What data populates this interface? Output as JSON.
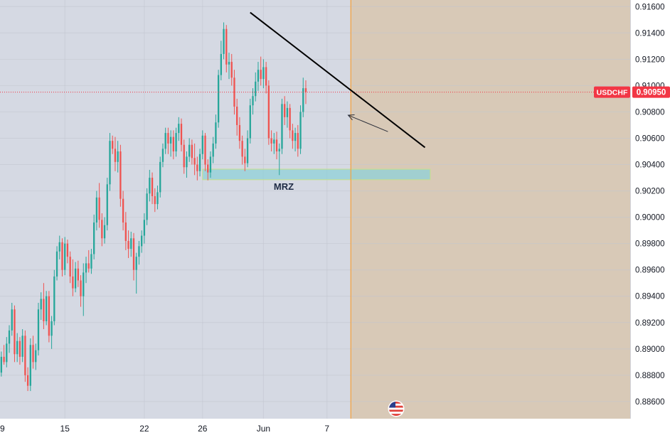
{
  "symbol": "USDCHF",
  "last_price": "0.90950",
  "zone_label": "MRZ",
  "colors": {
    "up": "#26a69a",
    "down": "#ef5350",
    "plot_bg": "#d5d9e3",
    "future_bg": "#d8c9b7",
    "divider": "#f5a13b",
    "price_line": "#f23645",
    "zone": "#8fd0d8",
    "trendline": "#000000",
    "axis_text": "#131722"
  },
  "icons": {
    "event": "us-flag-icon"
  },
  "chart_data": {
    "type": "candlestick",
    "y_ticks": [
      "0.91600",
      "0.91400",
      "0.91200",
      "0.91000",
      "0.90800",
      "0.90600",
      "0.90400",
      "0.90200",
      "0.90000",
      "0.89800",
      "0.89600",
      "0.89400",
      "0.89200",
      "0.89000",
      "0.88800",
      "0.88600"
    ],
    "x_ticks": [
      {
        "label": "9",
        "bar": -2
      },
      {
        "label": "15",
        "bar": 24
      },
      {
        "label": "22",
        "bar": 54
      },
      {
        "label": "26",
        "bar": 76
      },
      {
        "label": "Jun",
        "bar": 99
      },
      {
        "label": "7",
        "bar": 123
      }
    ],
    "ylim": [
      0.8847,
      0.9165
    ],
    "bars_visible": 238,
    "candles": [
      [
        0.8882,
        0.8898,
        0.8879,
        0.8894
      ],
      [
        0.8894,
        0.8903,
        0.8888,
        0.889
      ],
      [
        0.889,
        0.8909,
        0.8886,
        0.8904
      ],
      [
        0.8904,
        0.8918,
        0.8897,
        0.8914
      ],
      [
        0.8914,
        0.8935,
        0.891,
        0.893
      ],
      [
        0.893,
        0.8933,
        0.889,
        0.8896
      ],
      [
        0.8896,
        0.8912,
        0.889,
        0.8906
      ],
      [
        0.8906,
        0.8909,
        0.8888,
        0.8894
      ],
      [
        0.8894,
        0.8915,
        0.889,
        0.891
      ],
      [
        0.891,
        0.8914,
        0.8875,
        0.888
      ],
      [
        0.888,
        0.8886,
        0.8868,
        0.8872
      ],
      [
        0.8872,
        0.8908,
        0.8868,
        0.8903
      ],
      [
        0.8903,
        0.891,
        0.8885,
        0.889
      ],
      [
        0.889,
        0.8904,
        0.8884,
        0.8899
      ],
      [
        0.8899,
        0.8935,
        0.8895,
        0.893
      ],
      [
        0.893,
        0.8943,
        0.8922,
        0.8938
      ],
      [
        0.8938,
        0.895,
        0.8915,
        0.8921
      ],
      [
        0.8921,
        0.8944,
        0.8918,
        0.894
      ],
      [
        0.894,
        0.8944,
        0.8905,
        0.891
      ],
      [
        0.891,
        0.8925,
        0.89,
        0.8921
      ],
      [
        0.8921,
        0.896,
        0.8918,
        0.8955
      ],
      [
        0.8955,
        0.8978,
        0.8952,
        0.8974
      ],
      [
        0.8974,
        0.8986,
        0.8968,
        0.8981
      ],
      [
        0.8981,
        0.8984,
        0.8955,
        0.896
      ],
      [
        0.896,
        0.8985,
        0.8956,
        0.898
      ],
      [
        0.898,
        0.8983,
        0.8965,
        0.897
      ],
      [
        0.897,
        0.8974,
        0.895,
        0.8955
      ],
      [
        0.8955,
        0.8968,
        0.894,
        0.8946
      ],
      [
        0.8946,
        0.8966,
        0.8943,
        0.8961
      ],
      [
        0.8961,
        0.8967,
        0.8947,
        0.8952
      ],
      [
        0.8952,
        0.8956,
        0.8932,
        0.894
      ],
      [
        0.894,
        0.8965,
        0.8925,
        0.8958
      ],
      [
        0.8958,
        0.897,
        0.895,
        0.8965
      ],
      [
        0.8965,
        0.8975,
        0.8958,
        0.8961
      ],
      [
        0.8961,
        0.8976,
        0.8957,
        0.8972
      ],
      [
        0.8972,
        0.9002,
        0.8968,
        0.8996
      ],
      [
        0.8996,
        0.902,
        0.899,
        0.9015
      ],
      [
        0.9015,
        0.9026,
        0.8992,
        0.8998
      ],
      [
        0.8998,
        0.9003,
        0.8978,
        0.8984
      ],
      [
        0.8984,
        0.9,
        0.898,
        0.8994
      ],
      [
        0.8994,
        0.903,
        0.899,
        0.9025
      ],
      [
        0.9025,
        0.9064,
        0.902,
        0.9058
      ],
      [
        0.9058,
        0.9062,
        0.9048,
        0.9052
      ],
      [
        0.9052,
        0.9061,
        0.9035,
        0.9042
      ],
      [
        0.9042,
        0.9058,
        0.9034,
        0.905
      ],
      [
        0.905,
        0.9055,
        0.9008,
        0.9014
      ],
      [
        0.9014,
        0.902,
        0.899,
        0.8996
      ],
      [
        0.8996,
        0.9004,
        0.8975,
        0.8982
      ],
      [
        0.8982,
        0.899,
        0.8969,
        0.8976
      ],
      [
        0.8976,
        0.8989,
        0.897,
        0.8984
      ],
      [
        0.8984,
        0.8988,
        0.8952,
        0.896
      ],
      [
        0.896,
        0.8973,
        0.8942,
        0.897
      ],
      [
        0.897,
        0.8982,
        0.8964,
        0.8978
      ],
      [
        0.8978,
        0.899,
        0.8973,
        0.8986
      ],
      [
        0.8986,
        0.9003,
        0.898,
        0.8998
      ],
      [
        0.8998,
        0.9022,
        0.8994,
        0.9018
      ],
      [
        0.9018,
        0.9036,
        0.9012,
        0.903
      ],
      [
        0.903,
        0.9034,
        0.901,
        0.9016
      ],
      [
        0.9016,
        0.9022,
        0.9004,
        0.901
      ],
      [
        0.901,
        0.9024,
        0.9006,
        0.9019
      ],
      [
        0.9019,
        0.9046,
        0.9015,
        0.9042
      ],
      [
        0.9042,
        0.9056,
        0.9038,
        0.9052
      ],
      [
        0.9052,
        0.9068,
        0.9048,
        0.9064
      ],
      [
        0.9064,
        0.9068,
        0.9048,
        0.9056
      ],
      [
        0.9056,
        0.9066,
        0.9046,
        0.9061
      ],
      [
        0.9061,
        0.9066,
        0.9044,
        0.905
      ],
      [
        0.905,
        0.9068,
        0.9046,
        0.9064
      ],
      [
        0.9064,
        0.9076,
        0.9058,
        0.9071
      ],
      [
        0.9071,
        0.9075,
        0.905,
        0.9055
      ],
      [
        0.9055,
        0.9059,
        0.9033,
        0.9038
      ],
      [
        0.9038,
        0.905,
        0.903,
        0.9046
      ],
      [
        0.9046,
        0.906,
        0.9042,
        0.9055
      ],
      [
        0.9055,
        0.9059,
        0.904,
        0.9045
      ],
      [
        0.9045,
        0.9056,
        0.9032,
        0.904
      ],
      [
        0.904,
        0.9046,
        0.9028,
        0.9035
      ],
      [
        0.9035,
        0.9052,
        0.9031,
        0.9048
      ],
      [
        0.9048,
        0.9066,
        0.9044,
        0.9062
      ],
      [
        0.9062,
        0.9064,
        0.9035,
        0.904
      ],
      [
        0.904,
        0.9044,
        0.9028,
        0.9034
      ],
      [
        0.9034,
        0.905,
        0.903,
        0.9046
      ],
      [
        0.9046,
        0.9061,
        0.9041,
        0.9056
      ],
      [
        0.9056,
        0.9078,
        0.9052,
        0.9072
      ],
      [
        0.9072,
        0.9112,
        0.9068,
        0.9108
      ],
      [
        0.9108,
        0.9134,
        0.9104,
        0.9124
      ],
      [
        0.9124,
        0.9148,
        0.912,
        0.9143
      ],
      [
        0.9143,
        0.9146,
        0.911,
        0.9116
      ],
      [
        0.9116,
        0.9125,
        0.9105,
        0.9118
      ],
      [
        0.9118,
        0.9124,
        0.91,
        0.9106
      ],
      [
        0.9106,
        0.9112,
        0.9078,
        0.9084
      ],
      [
        0.9084,
        0.909,
        0.9062,
        0.907
      ],
      [
        0.907,
        0.9076,
        0.9052,
        0.9058
      ],
      [
        0.9058,
        0.9062,
        0.904,
        0.9046
      ],
      [
        0.9046,
        0.9052,
        0.9035,
        0.9041
      ],
      [
        0.9041,
        0.9066,
        0.9038,
        0.906
      ],
      [
        0.906,
        0.909,
        0.9056,
        0.9085
      ],
      [
        0.9085,
        0.9098,
        0.9078,
        0.9092
      ],
      [
        0.9092,
        0.911,
        0.9088,
        0.9103
      ],
      [
        0.9103,
        0.9118,
        0.9096,
        0.9112
      ],
      [
        0.9112,
        0.9122,
        0.91,
        0.9105
      ],
      [
        0.9105,
        0.912,
        0.9098,
        0.9114
      ],
      [
        0.9114,
        0.9118,
        0.9094,
        0.91
      ],
      [
        0.91,
        0.9104,
        0.9055,
        0.906
      ],
      [
        0.906,
        0.9066,
        0.905,
        0.9056
      ],
      [
        0.9056,
        0.9064,
        0.9048,
        0.9059
      ],
      [
        0.9059,
        0.9065,
        0.9044,
        0.905
      ],
      [
        0.905,
        0.9056,
        0.9032,
        0.9052
      ],
      [
        0.9052,
        0.909,
        0.9048,
        0.9086
      ],
      [
        0.9086,
        0.9092,
        0.907,
        0.9076
      ],
      [
        0.9076,
        0.9088,
        0.9068,
        0.9083
      ],
      [
        0.9083,
        0.9086,
        0.906,
        0.9066
      ],
      [
        0.9066,
        0.9071,
        0.9052,
        0.9058
      ],
      [
        0.9058,
        0.9068,
        0.905,
        0.9064
      ],
      [
        0.9064,
        0.907,
        0.9046,
        0.9052
      ],
      [
        0.9052,
        0.9085,
        0.9048,
        0.908
      ],
      [
        0.908,
        0.9106,
        0.9076,
        0.9098
      ],
      [
        0.9098,
        0.9104,
        0.9086,
        0.9095
      ]
    ],
    "zone": {
      "x_start_bar": 76,
      "x_end_bar": 162,
      "y_low": 0.90285,
      "y_high": 0.90365
    },
    "trendline": {
      "x1_bar": 94,
      "y1": 0.91555,
      "x2_bar": 160,
      "y2": 0.9053
    },
    "arrow": {
      "from_bar": 146,
      "from_y": 0.9065,
      "to_bar": 131,
      "to_y": 0.90775
    },
    "divider_bar": 132
  }
}
